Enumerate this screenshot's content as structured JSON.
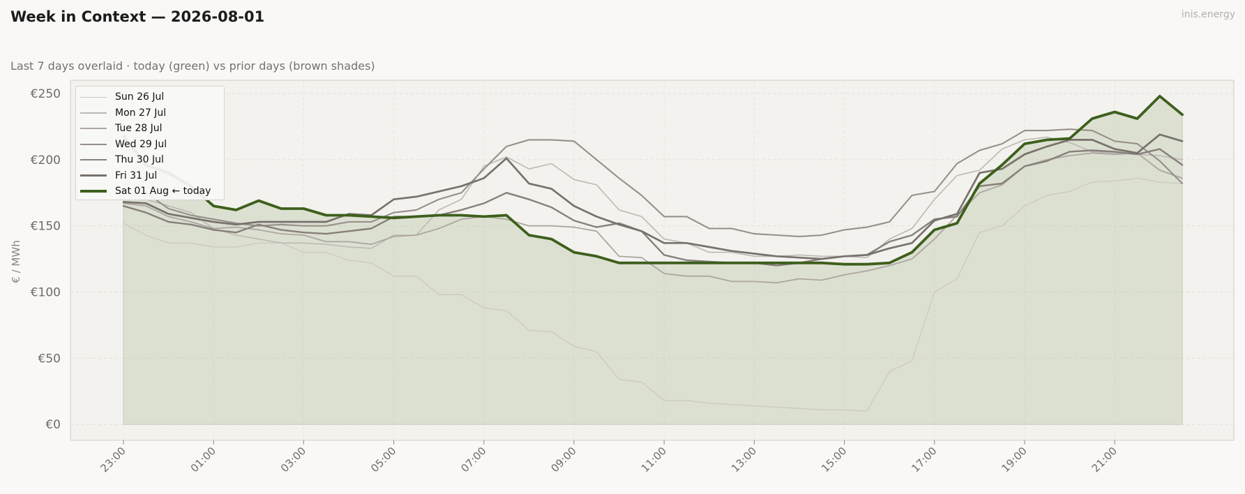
{
  "header": {
    "title": "Week in Context — 2026-08-01",
    "brand": "inis.energy",
    "subtitle": "Last 7 days overlaid  ·  today (green) vs prior days (brown shades)"
  },
  "chart_data": {
    "type": "line",
    "title": "Week in Context — 2026-08-01",
    "subtitle": "Last 7 days overlaid  ·  today (green) vs prior days (brown shades)",
    "xlabel": "",
    "ylabel": "€ / MWh",
    "ylim": [
      -12,
      260
    ],
    "yticks": [
      0,
      50,
      100,
      150,
      200,
      250
    ],
    "ytick_labels": [
      "€0",
      "€50",
      "€100",
      "€150",
      "€200",
      "€250"
    ],
    "xtick_labels": [
      "23:00",
      "01:00",
      "03:00",
      "05:00",
      "07:00",
      "09:00",
      "11:00",
      "13:00",
      "15:00",
      "17:00",
      "19:00",
      "21:00"
    ],
    "x_start": "23:00",
    "x_step_minutes": 30,
    "grid": true,
    "legend_position": "top-left",
    "colors": {
      "today": "#3d5f1c",
      "fill": "#a3b58a",
      "plot_bg": "#f3f2ee",
      "axis": "#d0ccc6"
    },
    "series": [
      {
        "name": "Sun 26 Jul",
        "color": "#cdc9c4",
        "width": 1.4,
        "values": [
          152,
          143,
          137,
          137,
          134,
          134,
          137,
          137,
          130,
          130,
          124,
          122,
          112,
          112,
          98,
          98,
          88,
          86,
          71,
          70,
          59,
          55,
          34,
          32,
          18,
          18,
          16,
          15,
          14,
          13,
          12,
          11,
          11,
          10,
          40,
          48,
          100,
          110,
          145,
          150,
          165,
          173,
          176,
          183,
          184,
          186,
          183,
          182
        ]
      },
      {
        "name": "Mon 27 Jul",
        "color": "#bdb8b3",
        "width": 1.6,
        "values": [
          178,
          170,
          165,
          160,
          148,
          143,
          140,
          137,
          137,
          136,
          134,
          133,
          143,
          143,
          162,
          170,
          195,
          202,
          193,
          197,
          185,
          181,
          162,
          157,
          140,
          137,
          130,
          130,
          127,
          127,
          128,
          127,
          127,
          126,
          140,
          148,
          170,
          188,
          192,
          208,
          215,
          217,
          213,
          206,
          205,
          204,
          203,
          200
        ]
      },
      {
        "name": "Tue 28 Jul",
        "color": "#aca6a0",
        "width": 1.8,
        "values": [
          167,
          165,
          157,
          153,
          148,
          149,
          147,
          144,
          143,
          138,
          138,
          136,
          142,
          143,
          148,
          155,
          157,
          155,
          150,
          150,
          149,
          146,
          127,
          126,
          114,
          112,
          112,
          108,
          108,
          107,
          110,
          109,
          113,
          116,
          120,
          125,
          140,
          158,
          175,
          181,
          195,
          200,
          203,
          205,
          204,
          205,
          192,
          186
        ]
      },
      {
        "name": "Wed 29 Jul",
        "color": "#978f8a",
        "width": 2.1,
        "values": [
          175,
          175,
          163,
          158,
          155,
          152,
          150,
          151,
          150,
          150,
          153,
          153,
          160,
          162,
          170,
          175,
          193,
          210,
          215,
          215,
          214,
          200,
          186,
          173,
          157,
          157,
          148,
          148,
          144,
          143,
          142,
          143,
          147,
          149,
          153,
          173,
          176,
          197,
          207,
          212,
          222,
          222,
          223,
          222,
          214,
          212,
          199,
          182
        ]
      },
      {
        "name": "Thu 30 Jul",
        "color": "#877f7a",
        "width": 2.4,
        "values": [
          165,
          160,
          153,
          151,
          147,
          145,
          151,
          147,
          145,
          144,
          146,
          148,
          157,
          157,
          158,
          162,
          167,
          175,
          170,
          164,
          154,
          149,
          152,
          146,
          128,
          124,
          123,
          122,
          122,
          120,
          122,
          125,
          127,
          128,
          138,
          143,
          155,
          157,
          180,
          182,
          195,
          199,
          206,
          207,
          206,
          204,
          208,
          196
        ]
      },
      {
        "name": "Fri 31 Jul",
        "color": "#78716c",
        "width": 2.7,
        "values": [
          168,
          167,
          159,
          156,
          153,
          151,
          153,
          153,
          153,
          153,
          159,
          158,
          170,
          172,
          176,
          180,
          186,
          201,
          182,
          178,
          165,
          157,
          151,
          146,
          137,
          137,
          134,
          131,
          129,
          127,
          126,
          125,
          127,
          128,
          133,
          137,
          154,
          159,
          190,
          193,
          204,
          210,
          215,
          215,
          208,
          205,
          219,
          214
        ]
      },
      {
        "name": "Sat 01 Aug  ← today",
        "color": "#3d5f1c",
        "width": 3.8,
        "values": [
          218,
          196,
          190,
          180,
          165,
          162,
          169,
          163,
          163,
          158,
          158,
          157,
          156,
          157,
          158,
          158,
          157,
          158,
          143,
          140,
          130,
          127,
          122,
          122,
          122,
          122,
          122,
          122,
          122,
          122,
          122,
          122,
          121,
          121,
          122,
          130,
          147,
          152,
          182,
          196,
          212,
          215,
          216,
          231,
          236,
          231,
          248,
          234
        ]
      }
    ]
  }
}
